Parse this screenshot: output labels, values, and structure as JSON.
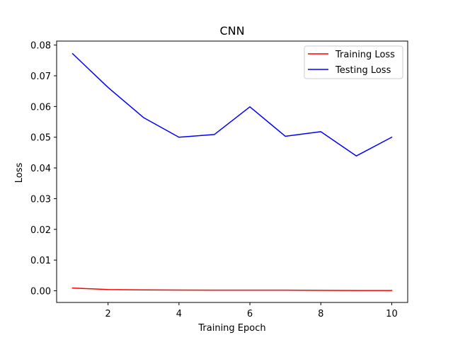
{
  "chart_data": {
    "type": "line",
    "title": "CNN",
    "xlabel": "Training Epoch",
    "ylabel": "Loss",
    "x": [
      1,
      2,
      3,
      4,
      5,
      6,
      7,
      8,
      9,
      10
    ],
    "xlim": [
      0.55,
      10.45
    ],
    "ylim": [
      -0.0038,
      0.0813
    ],
    "xticks": [
      2,
      4,
      6,
      8,
      10
    ],
    "yticks": [
      0.0,
      0.01,
      0.02,
      0.03,
      0.04,
      0.05,
      0.06,
      0.07,
      0.08
    ],
    "ytick_labels": [
      "0.00",
      "0.01",
      "0.02",
      "0.03",
      "0.04",
      "0.05",
      "0.06",
      "0.07",
      "0.08"
    ],
    "grid": false,
    "legend_position": "top-right",
    "series": [
      {
        "name": "Training Loss",
        "color": "#ff0000",
        "values": [
          0.0009,
          0.0004,
          0.0003,
          0.00025,
          0.0002,
          0.0002,
          0.0002,
          0.00015,
          0.0001,
          0.0001
        ]
      },
      {
        "name": "Testing Loss",
        "color": "#0000ff",
        "values": [
          0.0772,
          0.0662,
          0.0564,
          0.05,
          0.0509,
          0.0599,
          0.0503,
          0.0518,
          0.0439,
          0.05
        ]
      }
    ]
  }
}
